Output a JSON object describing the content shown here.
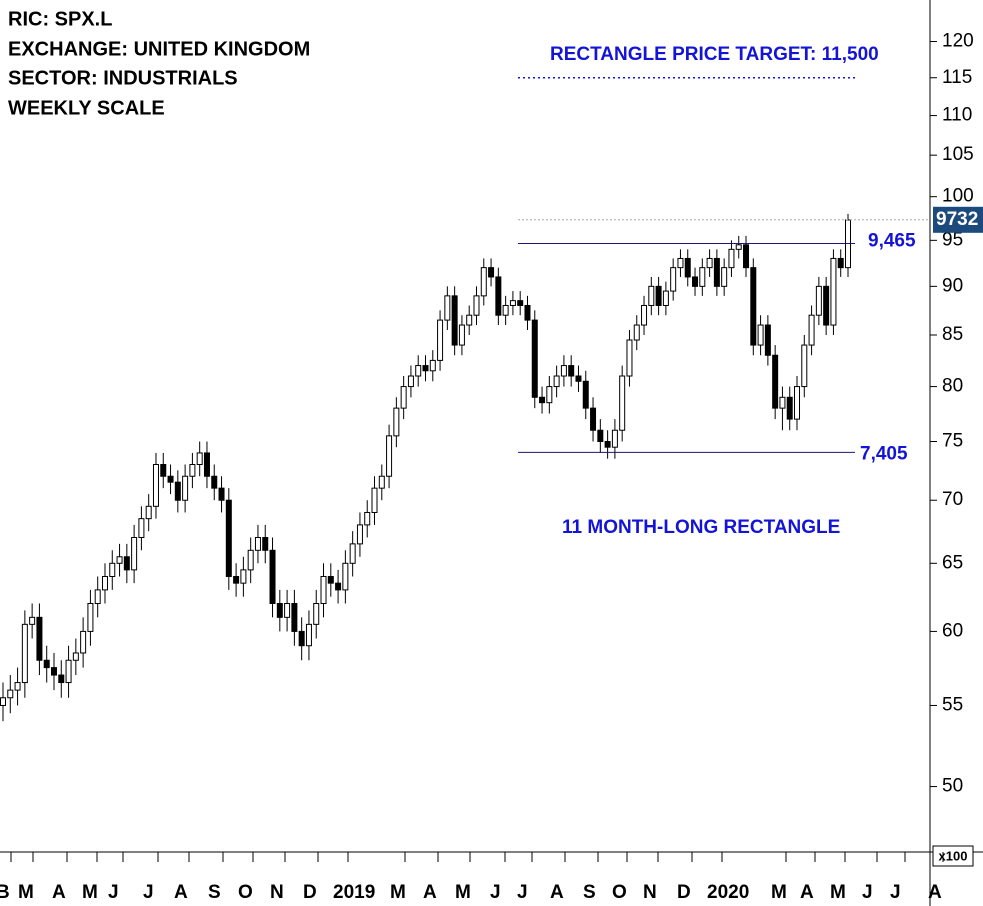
{
  "chart_data": {
    "type": "candlestick",
    "header": [
      "RIC: SPX.L",
      "EXCHANGE: UNITED KINGDOM",
      "SECTOR: INDUSTRIALS",
      "WEEKLY SCALE"
    ],
    "annotations": [
      "RECTANGLE PRICE TARGET: 11,500",
      "11 MONTH-LONG RECTANGLE"
    ],
    "target": 115,
    "levels": [
      {
        "value": 94.65,
        "label": "9,465"
      },
      {
        "value": 74.05,
        "label": "7,405"
      }
    ],
    "last_price": {
      "value": 97.32,
      "label": "9732"
    },
    "axis_unit": "x100",
    "log_scale": true,
    "ylim": [
      46.3,
      126
    ],
    "yticks": [
      50,
      55,
      60,
      65,
      70,
      75,
      80,
      85,
      90,
      95,
      100,
      105,
      110,
      115,
      120
    ],
    "month_labels": [
      "B",
      "M",
      "A",
      "M",
      "J",
      "J",
      "A",
      "S",
      "O",
      "N",
      "D",
      "2019",
      "M",
      "A",
      "M",
      "J",
      "J",
      "A",
      "S",
      "O",
      "N",
      "D",
      "2020",
      "M",
      "A",
      "M",
      "J",
      "J",
      "A"
    ],
    "up_color": "#ffffff",
    "down_color": "#000000",
    "series": {
      "open": [
        55,
        55.5,
        56,
        56.5,
        60.5,
        61,
        58,
        57.5,
        57,
        56.5,
        58,
        58.5,
        60,
        62,
        63,
        64,
        65,
        65.5,
        64.5,
        67,
        68.5,
        69.5,
        73,
        72,
        71.5,
        70,
        72,
        73,
        74,
        72,
        71,
        70,
        64,
        63.5,
        64.5,
        66,
        67,
        66,
        62,
        61,
        62,
        60,
        59,
        60.5,
        62,
        64,
        63.5,
        63,
        65,
        66.5,
        68,
        69,
        71,
        72,
        75.5,
        78,
        80,
        81,
        82,
        81.5,
        82.5,
        86.5,
        89,
        84,
        86,
        87,
        89,
        92,
        91,
        87,
        88,
        88.5,
        88,
        86.5,
        79,
        78.5,
        80,
        81,
        82,
        81,
        80.5,
        78,
        76,
        75,
        74.5,
        76,
        81,
        84.5,
        86,
        88,
        90,
        88,
        89.5,
        92,
        93,
        91,
        90,
        92,
        93,
        90,
        92,
        94,
        94.5,
        92,
        84,
        86,
        83,
        78,
        79,
        77,
        80,
        84,
        87,
        90,
        86,
        93,
        92
      ],
      "high": [
        56.5,
        57,
        57.5,
        61.5,
        62,
        62,
        59,
        58.5,
        58,
        59,
        59.5,
        61,
        63,
        64,
        65,
        66,
        66.5,
        66.5,
        68,
        69.5,
        70.5,
        74,
        74,
        73,
        72.5,
        73,
        74,
        75,
        75,
        73,
        72,
        71,
        65,
        65.5,
        67,
        68,
        68,
        67,
        63,
        63,
        63,
        61,
        61.5,
        63,
        65,
        65,
        64.5,
        66,
        67.5,
        69,
        70,
        72,
        73,
        76.5,
        79,
        81,
        82,
        83,
        83,
        83.5,
        87.5,
        90,
        90,
        87,
        88,
        90,
        93,
        93,
        92,
        89,
        89.5,
        89.5,
        89,
        87.5,
        80,
        81,
        82,
        83,
        83,
        82,
        81.5,
        79,
        77,
        76,
        77,
        82,
        85.5,
        87,
        89,
        91,
        91,
        90.5,
        93,
        94,
        94,
        92,
        93,
        94,
        94,
        93,
        95,
        95.5,
        95.5,
        93,
        87,
        87,
        84,
        80,
        80,
        81,
        85,
        88,
        91,
        91,
        94,
        94,
        98
      ],
      "low": [
        54,
        54.5,
        55,
        55.5,
        59.5,
        57,
        56.5,
        56,
        55.5,
        55.5,
        57,
        57.5,
        59,
        61,
        62,
        63,
        64,
        63.5,
        63.5,
        66,
        67.5,
        68.5,
        71,
        70.5,
        69,
        69,
        71,
        72,
        71,
        70,
        69,
        63,
        62.5,
        62.5,
        63.5,
        65,
        65,
        61,
        60,
        60,
        59,
        58,
        58,
        59.5,
        61,
        62.5,
        62,
        62,
        64,
        65.5,
        67,
        68,
        70,
        71,
        74.5,
        77,
        79,
        80,
        80.5,
        80.5,
        81.5,
        85.5,
        83,
        83,
        85,
        86,
        88,
        90,
        86,
        86,
        87,
        87,
        85.5,
        78,
        77.5,
        77.5,
        79,
        80,
        80,
        79.5,
        77,
        75,
        74,
        73.5,
        73.5,
        75,
        80,
        83.5,
        85,
        87,
        87,
        87,
        88.5,
        91,
        90,
        89,
        89,
        91,
        89,
        89,
        91,
        93,
        91,
        83,
        83,
        82,
        77,
        76,
        76,
        76,
        79,
        83,
        86,
        85,
        85,
        91,
        91
      ],
      "close": [
        55.5,
        56,
        56.5,
        60.5,
        61,
        58,
        57.5,
        57,
        56.5,
        58,
        58.5,
        60,
        62,
        63,
        64,
        65,
        65.5,
        64.5,
        67,
        68.5,
        69.5,
        73,
        72,
        71.5,
        70,
        72,
        73,
        74,
        72,
        71,
        70,
        64,
        63.5,
        64.5,
        66,
        67,
        66,
        62,
        61,
        62,
        60,
        59,
        60.5,
        62,
        64,
        63.5,
        63,
        65,
        66.5,
        68,
        69,
        71,
        72,
        75.5,
        78,
        80,
        81,
        82,
        81.5,
        82.5,
        86.5,
        89,
        84,
        86,
        87,
        89,
        92,
        91,
        87,
        88,
        88.5,
        88,
        86.5,
        79,
        78.5,
        80,
        81,
        82,
        81,
        80.5,
        78,
        76,
        75,
        74.5,
        76,
        81,
        84.5,
        86,
        88,
        90,
        88,
        89.5,
        92,
        93,
        91,
        90,
        92,
        93,
        90,
        92,
        94,
        94.5,
        92,
        84,
        86,
        83,
        78,
        79,
        77,
        80,
        84,
        87,
        90,
        86,
        93,
        92,
        97.3
      ]
    }
  }
}
